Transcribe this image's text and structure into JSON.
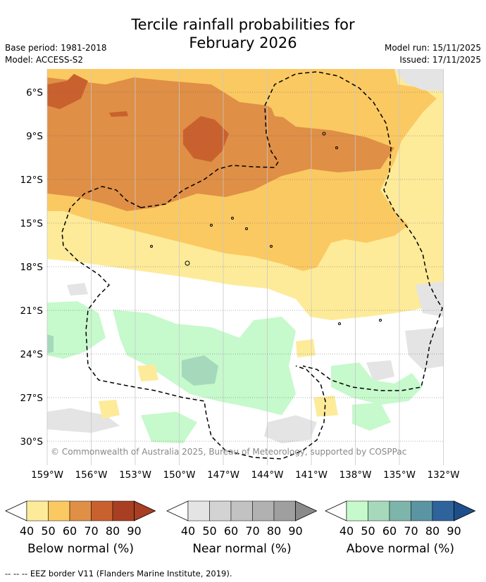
{
  "title_line1": "Tercile rainfall probabilities for",
  "title_line2": "February 2026",
  "base_period": "Base period: 1981-2018",
  "model": "Model: ACCESS-S2",
  "model_run": "Model run: 15/11/2025",
  "issued": "Issued: 17/11/2025",
  "lat_labels": [
    "6°S",
    "9°S",
    "12°S",
    "15°S",
    "18°S",
    "21°S",
    "24°S",
    "27°S",
    "30°S"
  ],
  "lon_labels": [
    "159°W",
    "156°W",
    "153°W",
    "150°W",
    "147°W",
    "144°W",
    "141°W",
    "138°W",
    "135°W",
    "132°W"
  ],
  "copyright": "© Commonwealth of Australia 2025, Bureau of Meteorology, supported by COSPPac",
  "legends": [
    {
      "label": "Below normal (%)",
      "ticks": [
        "40",
        "50",
        "60",
        "70",
        "80",
        "90"
      ],
      "colors": [
        "#fdeb9a",
        "#fbc962",
        "#df8f46",
        "#c9612f",
        "#a83f22",
        "#a83f22"
      ]
    },
    {
      "label": "Near normal (%)",
      "ticks": [
        "40",
        "50",
        "60",
        "70",
        "80",
        "90"
      ],
      "colors": [
        "#e4e4e4",
        "#d3d3d3",
        "#c2c2c2",
        "#b1b1b1",
        "#9f9f9f",
        "#8a8a8a"
      ]
    },
    {
      "label": "Above normal (%)",
      "ticks": [
        "40",
        "50",
        "60",
        "70",
        "80",
        "90"
      ],
      "colors": [
        "#c6f9cc",
        "#a6d9bb",
        "#7db5ab",
        "#5b95a3",
        "#2f639c",
        "#1f4f8a"
      ]
    }
  ],
  "footnote": "--  --  -- EEZ border V11 (Flanders Marine Institute, 2019)."
}
